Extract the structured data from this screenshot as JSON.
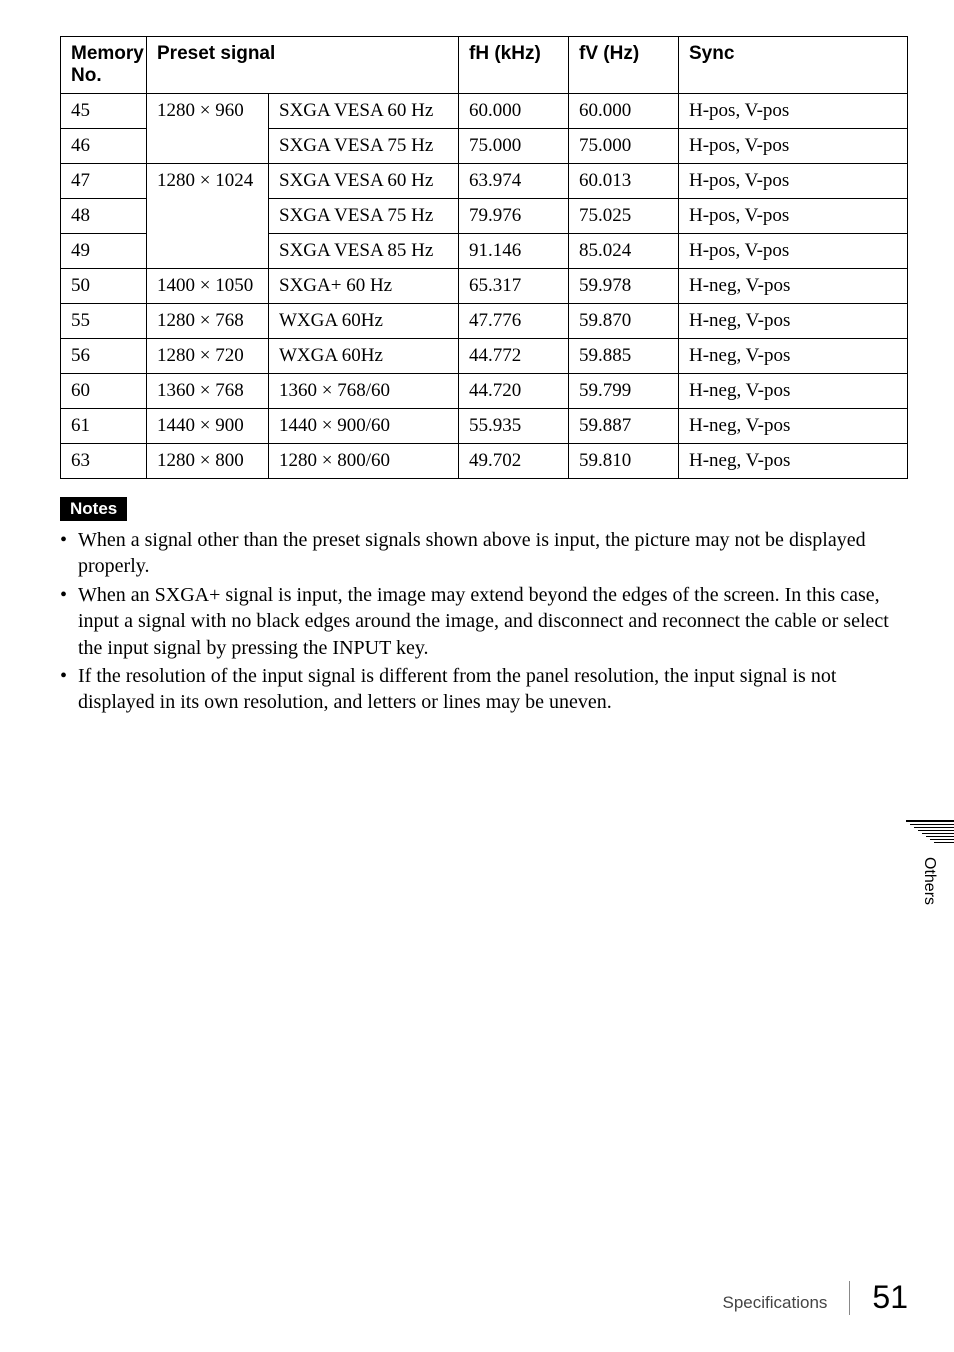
{
  "table": {
    "headers": {
      "memory": "Memory No.",
      "preset": "Preset signal",
      "fh": "fH (kHz)",
      "fv": "fV (Hz)",
      "sync": "Sync"
    },
    "rows": [
      {
        "no": "45",
        "res": "1280 × 960",
        "sig": "SXGA VESA 60 Hz",
        "fh": "60.000",
        "fv": "60.000",
        "sync": "H-pos, V-pos",
        "span": 2,
        "show_res": true
      },
      {
        "no": "46",
        "res": "",
        "sig": "SXGA VESA 75 Hz",
        "fh": "75.000",
        "fv": "75.000",
        "sync": "H-pos, V-pos",
        "span": 0,
        "show_res": false
      },
      {
        "no": "47",
        "res": "1280 × 1024",
        "sig": "SXGA VESA 60 Hz",
        "fh": "63.974",
        "fv": "60.013",
        "sync": "H-pos, V-pos",
        "span": 3,
        "show_res": true
      },
      {
        "no": "48",
        "res": "",
        "sig": "SXGA VESA 75 Hz",
        "fh": "79.976",
        "fv": "75.025",
        "sync": "H-pos, V-pos",
        "span": 0,
        "show_res": false
      },
      {
        "no": "49",
        "res": "",
        "sig": "SXGA VESA 85 Hz",
        "fh": "91.146",
        "fv": "85.024",
        "sync": "H-pos, V-pos",
        "span": 0,
        "show_res": false
      },
      {
        "no": "50",
        "res": "1400 × 1050",
        "sig": "SXGA+ 60 Hz",
        "fh": "65.317",
        "fv": "59.978",
        "sync": "H-neg, V-pos",
        "span": 1,
        "show_res": true
      },
      {
        "no": "55",
        "res": "1280 × 768",
        "sig": "WXGA 60Hz",
        "fh": "47.776",
        "fv": "59.870",
        "sync": "H-neg, V-pos",
        "span": 1,
        "show_res": true
      },
      {
        "no": "56",
        "res": "1280 × 720",
        "sig": "WXGA 60Hz",
        "fh": "44.772",
        "fv": "59.885",
        "sync": "H-neg, V-pos",
        "span": 1,
        "show_res": true
      },
      {
        "no": "60",
        "res": "1360 × 768",
        "sig": "1360 × 768/60",
        "fh": "44.720",
        "fv": "59.799",
        "sync": "H-neg, V-pos",
        "span": 1,
        "show_res": true
      },
      {
        "no": "61",
        "res": "1440 × 900",
        "sig": "1440 × 900/60",
        "fh": "55.935",
        "fv": "59.887",
        "sync": "H-neg, V-pos",
        "span": 1,
        "show_res": true
      },
      {
        "no": "63",
        "res": "1280 × 800",
        "sig": "1280 × 800/60",
        "fh": "49.702",
        "fv": "59.810",
        "sync": "H-neg, V-pos",
        "span": 1,
        "show_res": true
      }
    ]
  },
  "notes": {
    "badge": "Notes",
    "items": [
      "When a signal other than the preset signals shown above is input, the picture may not be displayed properly.",
      "When an SXGA+ signal is input, the image may extend beyond the edges of the screen. In this case, input a signal with no black edges around the image, and disconnect and reconnect the cable or select the input signal by pressing the INPUT key.",
      "If the resolution of the input signal is different from the panel resolution, the input signal is not displayed in its own resolution, and letters or lines may be uneven."
    ]
  },
  "side_tab": "Others",
  "footer": {
    "label": "Specifications",
    "page": "51"
  }
}
